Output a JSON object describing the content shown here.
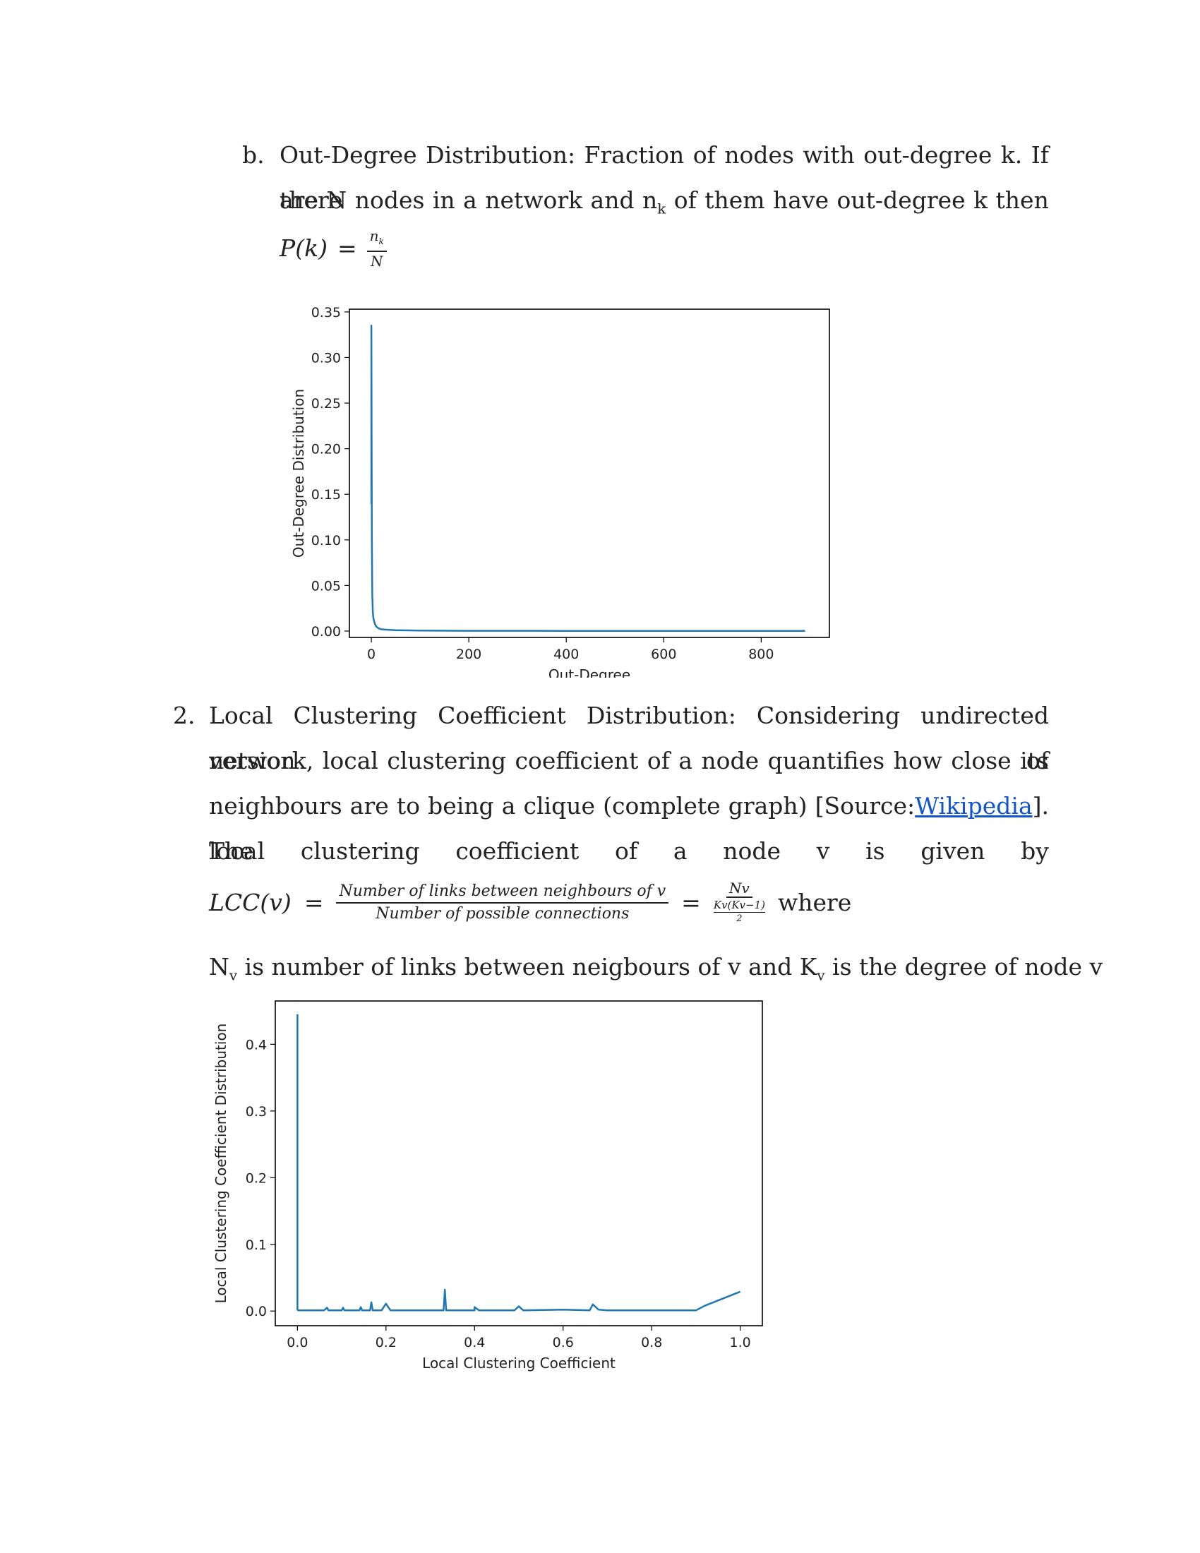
{
  "section_b": {
    "marker": "b.",
    "line1": "Out-Degree Distribution: Fraction of nodes with out-degree k. If there",
    "line2_words": [
      "are",
      "N",
      "nodes",
      "in",
      "a",
      "network",
      "and",
      "n",
      "of",
      "them",
      "have",
      "out-degree",
      "k",
      "then"
    ],
    "nk_sub": "k",
    "formula_lhs": "P(k)",
    "formula_eq": "=",
    "formula_num": "n",
    "formula_num_sub": "k",
    "formula_den": "N"
  },
  "section_2": {
    "marker": "2.",
    "line1": "Local Clustering Coefficient Distribution: Considering undirected version of",
    "line2_words": [
      "network,",
      "local",
      "clustering",
      "coefficient",
      "of",
      "a",
      "node",
      "quantifies",
      "how",
      "close",
      "its"
    ],
    "line3_pre": "neighbours are to being a clique (complete graph) [Source:",
    "line3_link": "Wikipedia",
    "line3_post": "]. The",
    "line4_words": [
      "local",
      "clustering",
      "coefficient",
      "of",
      "a",
      "node",
      "v",
      "is",
      "given",
      "by"
    ],
    "formula_lhs": "LCC(v)",
    "formula_eq": "=",
    "formula_num": "Number of links between neighbours of v",
    "formula_den": "Number of possible connections",
    "formula_num2": "Nv",
    "formula_den2": "Kv(Kv−1)",
    "formula_den2b": "2",
    "formula_where": "where",
    "line6_a": "N",
    "line6_sub1": "v",
    "line6_b": " is number of links between neigbours of v and K",
    "line6_sub2": "v",
    "line6_c": " is the degree of node v"
  },
  "chart_data": [
    {
      "type": "line",
      "xlabel": "Out-Degree",
      "ylabel": "Out-Degree Distribution",
      "xlim": [
        -45,
        940
      ],
      "ylim": [
        -0.007,
        0.353
      ],
      "xticks": [
        "0",
        "200",
        "400",
        "600",
        "800"
      ],
      "xtick_values": [
        0,
        200,
        400,
        600,
        800
      ],
      "yticks": [
        "0.00",
        "0.05",
        "0.10",
        "0.15",
        "0.20",
        "0.25",
        "0.30",
        "0.35"
      ],
      "ytick_values": [
        0,
        0.05,
        0.1,
        0.15,
        0.2,
        0.25,
        0.3,
        0.35
      ],
      "color": "#1f77b4",
      "series": [
        {
          "x": [
            0,
            0,
            0,
            1,
            2,
            3,
            4,
            6,
            8,
            10,
            15,
            20,
            30,
            50,
            100,
            200,
            400,
            600,
            800,
            890
          ],
          "y": [
            0.335,
            0.14,
            0.335,
            0.1,
            0.04,
            0.022,
            0.015,
            0.01,
            0.007,
            0.005,
            0.003,
            0.002,
            0.0015,
            0.001,
            0.0005,
            0.0003,
            0.0002,
            0.0001,
            0.0001,
            0.0001
          ]
        }
      ]
    },
    {
      "type": "line",
      "xlabel": "Local Clustering Coefficient",
      "ylabel": "Local Clustering Coefficient Distribution",
      "xlim": [
        -0.05,
        1.05
      ],
      "ylim": [
        -0.022,
        0.465
      ],
      "xticks": [
        "0.0",
        "0.2",
        "0.4",
        "0.6",
        "0.8",
        "1.0"
      ],
      "xtick_values": [
        0,
        0.2,
        0.4,
        0.6,
        0.8,
        1.0
      ],
      "yticks": [
        "0.0",
        "0.1",
        "0.2",
        "0.3",
        "0.4"
      ],
      "ytick_values": [
        0,
        0.1,
        0.2,
        0.3,
        0.4
      ],
      "color": "#1f77b4",
      "series": [
        {
          "x": [
            0,
            0,
            0.002,
            0.06,
            0.067,
            0.07,
            0.1,
            0.103,
            0.106,
            0.14,
            0.143,
            0.146,
            0.164,
            0.167,
            0.17,
            0.19,
            0.2,
            0.21,
            0.25,
            0.3,
            0.33,
            0.333,
            0.336,
            0.4,
            0.4,
            0.41,
            0.49,
            0.5,
            0.51,
            0.6,
            0.66,
            0.667,
            0.68,
            0.7,
            0.9,
            0.92,
            1.0
          ],
          "y": [
            0.445,
            0.002,
            0.001,
            0.001,
            0.005,
            0.001,
            0.001,
            0.005,
            0.001,
            0.001,
            0.006,
            0.001,
            0.001,
            0.013,
            0.001,
            0.001,
            0.011,
            0.001,
            0.001,
            0.001,
            0.001,
            0.032,
            0.001,
            0.001,
            0.006,
            0.001,
            0.001,
            0.007,
            0.001,
            0.002,
            0.001,
            0.01,
            0.002,
            0.001,
            0.001,
            0.008,
            0.029
          ]
        }
      ]
    }
  ]
}
